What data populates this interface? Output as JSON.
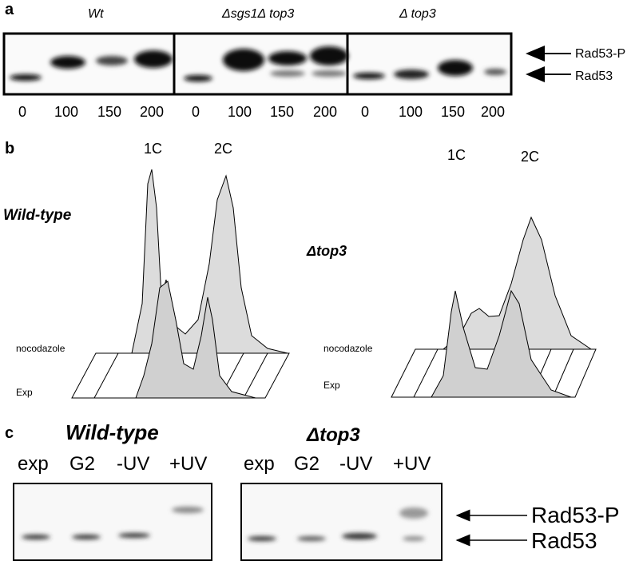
{
  "panel_a": {
    "label": "a",
    "strains": [
      "Wt",
      "Δsgs1Δ top3",
      "Δ top3"
    ],
    "times": [
      0,
      100,
      150,
      200
    ],
    "arrows": [
      "Rad53-P",
      "Rad53"
    ]
  },
  "panel_b": {
    "label": "b",
    "plots": [
      {
        "strain": "Wild-type",
        "peaks": [
          "1C",
          "2C"
        ],
        "back": "nocodazole",
        "front": "Exp"
      },
      {
        "strain": "Δtop3",
        "peaks": [
          "1C",
          "2C"
        ],
        "back": "nocodazole",
        "front": "Exp"
      }
    ]
  },
  "panel_c": {
    "label": "c",
    "strains": [
      "Wild-type",
      "Δtop3"
    ],
    "lanes": [
      "exp",
      "G2",
      "-UV",
      "+UV"
    ],
    "arrows": [
      "Rad53-P",
      "Rad53"
    ]
  }
}
